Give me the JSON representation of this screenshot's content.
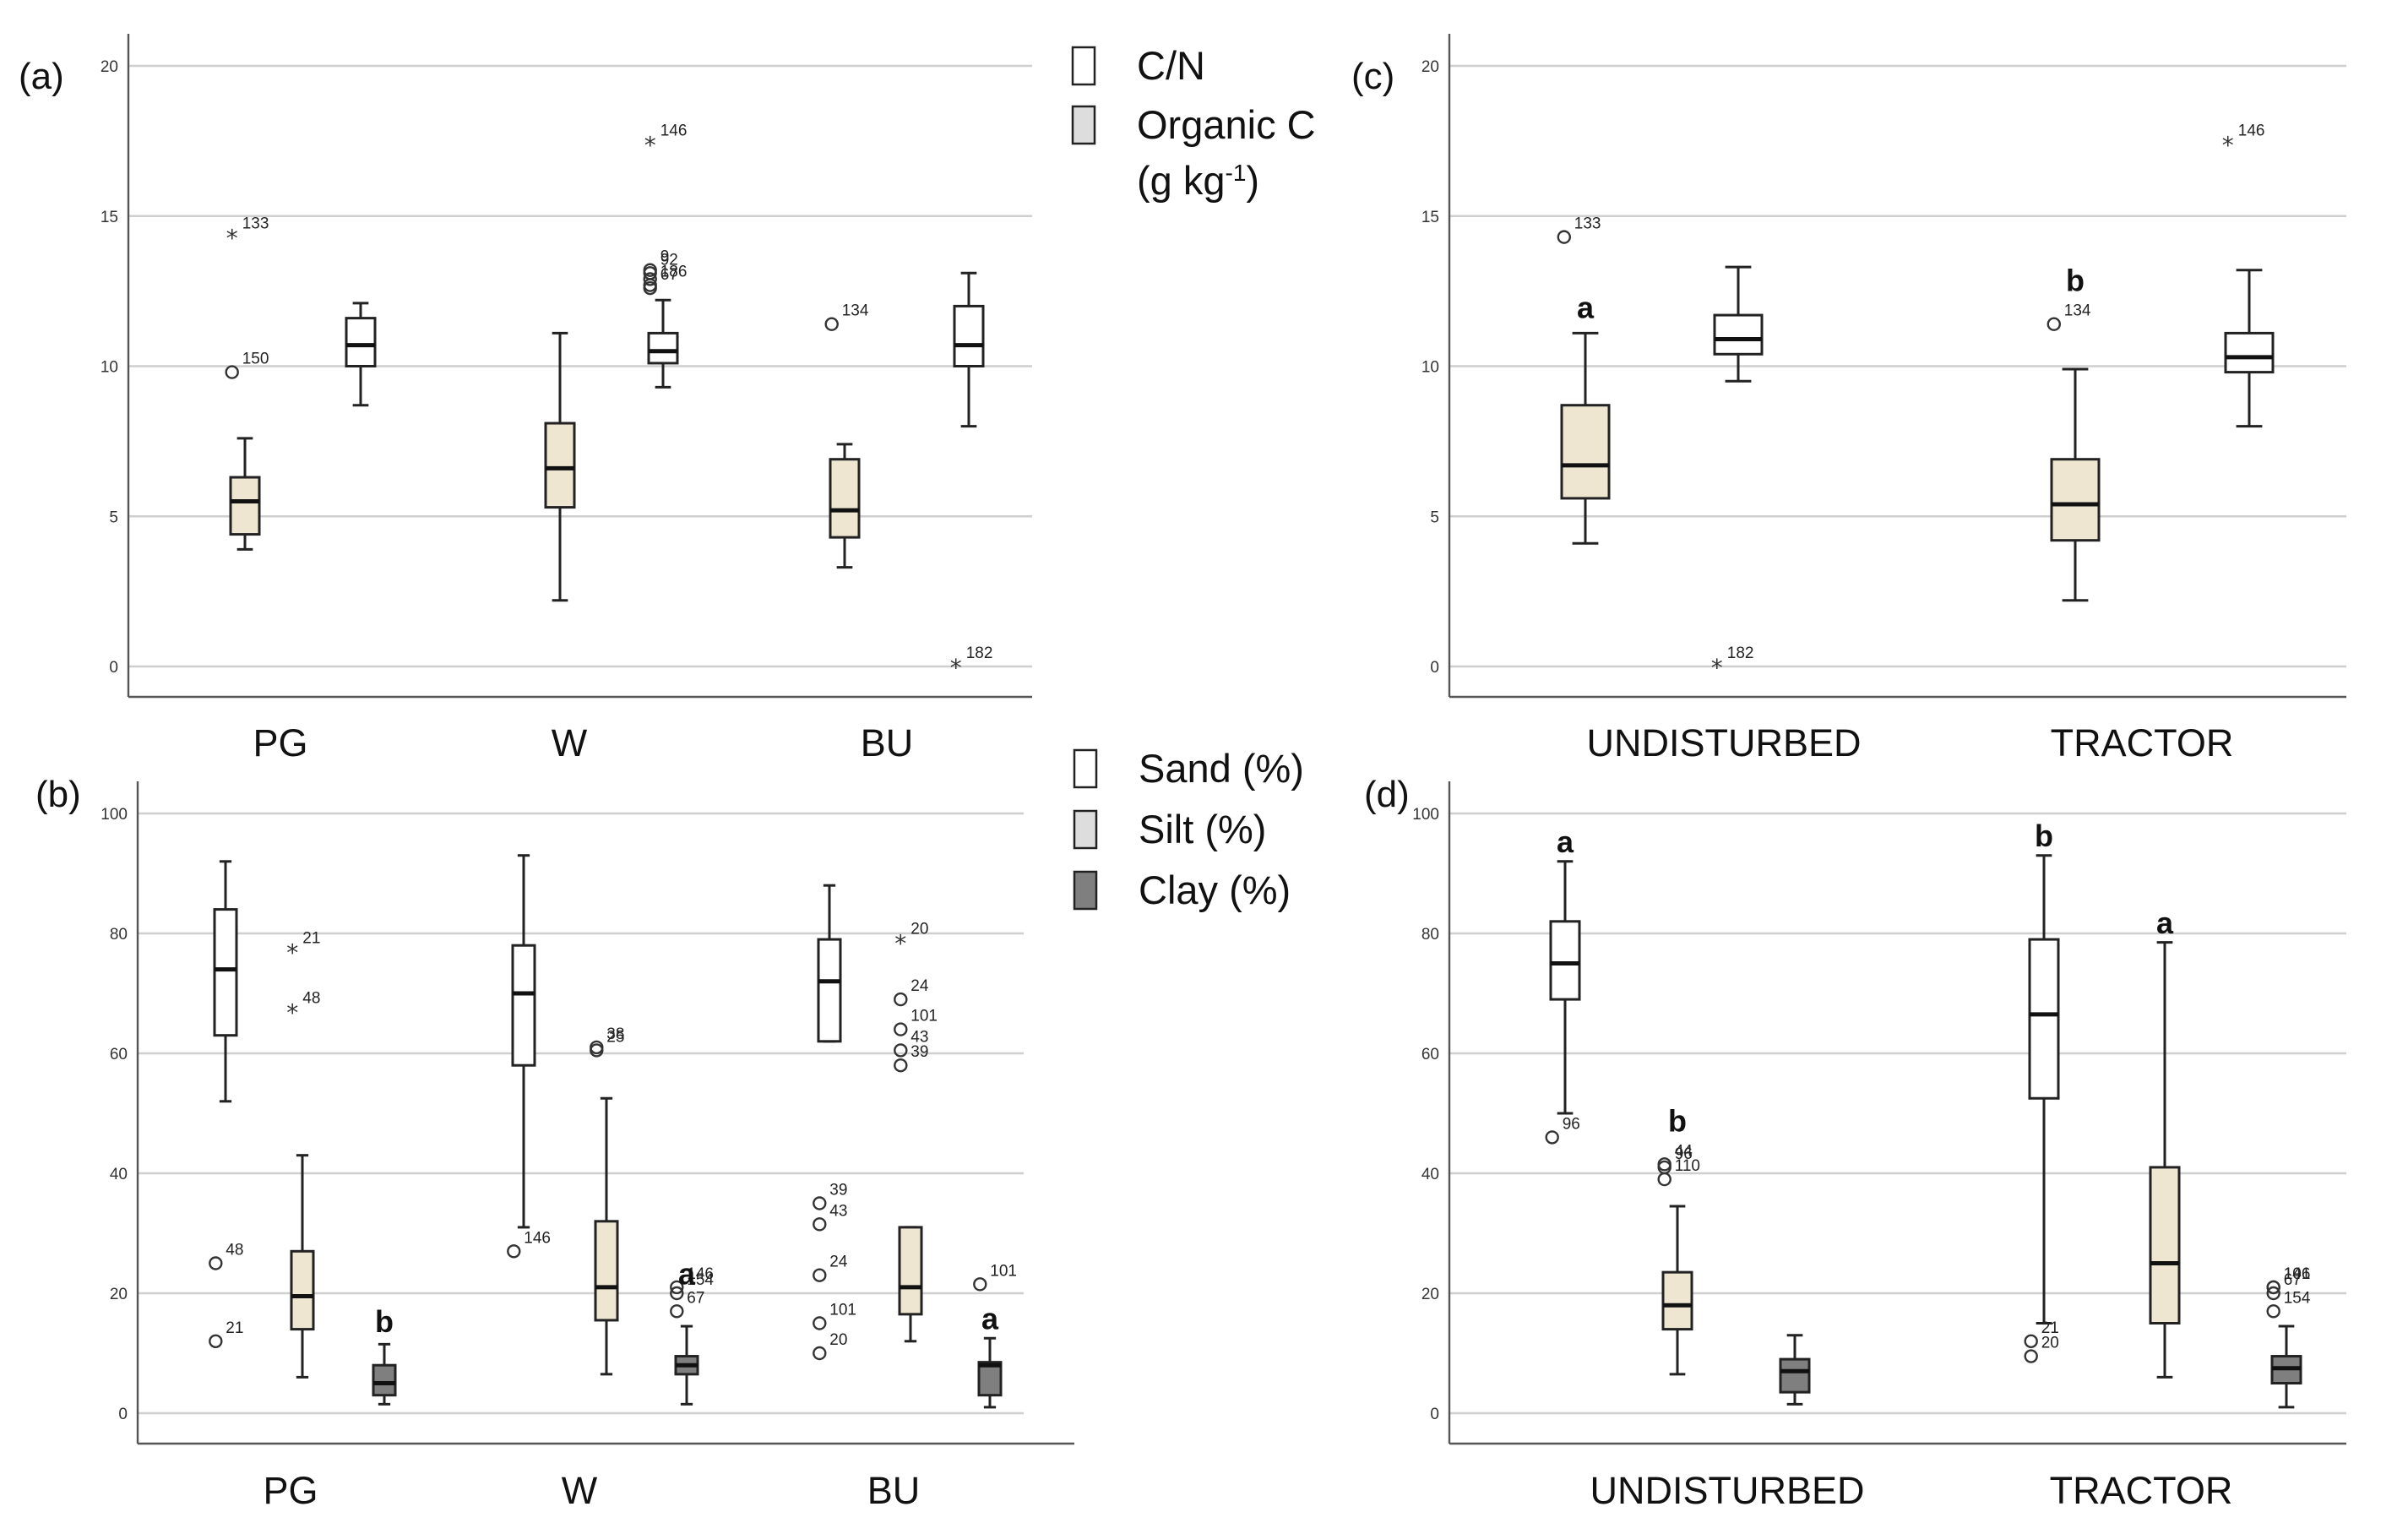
{
  "colors": {
    "white": "#ffffff",
    "beige": "#efe6d2",
    "light_gray": "#dddddd",
    "dark_gray": "#7f7f7f",
    "grid": "#cfcfcf",
    "axis": "#555555"
  },
  "legends": [
    {
      "panel": "a",
      "items": [
        {
          "label": "C/N",
          "color": "#ffffff"
        },
        {
          "label": "Organic C",
          "color": "#dddddd"
        }
      ],
      "extra_line": {
        "main": "(g kg",
        "sup": "-1",
        "tail": ")"
      }
    },
    {
      "panel": "b",
      "items": [
        {
          "label": "Sand (%)",
          "color": "#ffffff"
        },
        {
          "label": "Silt (%)",
          "color": "#dddddd"
        },
        {
          "label": "Clay (%)",
          "color": "#7f7f7f"
        }
      ]
    }
  ],
  "chart_data": [
    {
      "type": "boxplot",
      "panel_label": "(a)",
      "categories": [
        "PG",
        "W",
        "BU"
      ],
      "ylim": [
        0,
        20
      ],
      "yticks": [
        0,
        5,
        10,
        15,
        20
      ],
      "grid": true,
      "series": [
        {
          "name": "Organic C",
          "color": "#efe6d2",
          "boxes": [
            {
              "min": 3.9,
              "q1": 4.4,
              "median": 5.5,
              "q3": 6.3,
              "max": 7.6,
              "outliers": [
                {
                  "value": 14.3,
                  "label": "133",
                  "marker": "star"
                },
                {
                  "value": 9.8,
                  "label": "150",
                  "marker": "circle"
                }
              ]
            },
            {
              "min": 2.2,
              "q1": 5.3,
              "median": 6.6,
              "q3": 8.1,
              "max": 11.1,
              "outliers": []
            },
            {
              "min": 3.3,
              "q1": 4.3,
              "median": 5.2,
              "q3": 6.9,
              "max": 7.4,
              "outliers": [
                {
                  "value": 11.4,
                  "label": "134",
                  "marker": "circle"
                }
              ]
            }
          ]
        },
        {
          "name": "C/N",
          "color": "#ffffff",
          "boxes": [
            {
              "min": 8.7,
              "q1": 10.0,
              "median": 10.7,
              "q3": 11.6,
              "max": 12.1,
              "outliers": []
            },
            {
              "min": 9.3,
              "q1": 10.1,
              "median": 10.5,
              "q3": 11.1,
              "max": 12.2,
              "outliers": [
                {
                  "value": 17.4,
                  "label": "146",
                  "marker": "star"
                },
                {
                  "value": 13.2,
                  "label": "9",
                  "marker": "circle"
                },
                {
                  "value": 13.1,
                  "label": "92",
                  "marker": "circle"
                },
                {
                  "value": 12.9,
                  "label": "",
                  "marker": "circle"
                },
                {
                  "value": 12.7,
                  "label": "186",
                  "marker": "circle"
                },
                {
                  "value": 12.6,
                  "label": "67",
                  "marker": "circle"
                }
              ]
            },
            {
              "min": 8.0,
              "q1": 10.0,
              "median": 10.7,
              "q3": 12.0,
              "max": 13.1,
              "outliers": [
                {
                  "value": 0.0,
                  "label": "182",
                  "marker": "star"
                }
              ]
            }
          ]
        }
      ],
      "annotations": []
    },
    {
      "type": "boxplot",
      "panel_label": "(b)",
      "categories": [
        "PG",
        "W",
        "BU"
      ],
      "ylim": [
        0,
        100
      ],
      "yticks": [
        0,
        20,
        40,
        60,
        80,
        100
      ],
      "grid": true,
      "series": [
        {
          "name": "Sand (%)",
          "color": "#ffffff",
          "boxes": [
            {
              "min": 52,
              "q1": 63,
              "median": 74,
              "q3": 84,
              "max": 92,
              "outliers": [
                {
                  "value": 25,
                  "label": "48",
                  "marker": "circle"
                },
                {
                  "value": 12,
                  "label": "21",
                  "marker": "circle"
                }
              ]
            },
            {
              "min": 31,
              "q1": 58,
              "median": 70,
              "q3": 78,
              "max": 93,
              "outliers": [
                {
                  "value": 27,
                  "label": "146",
                  "marker": "circle"
                }
              ]
            },
            {
              "min": 62,
              "q1": 62,
              "median": 72,
              "q3": 79,
              "max": 88,
              "outliers": [
                {
                  "value": 35,
                  "label": "39",
                  "marker": "circle"
                },
                {
                  "value": 31.5,
                  "label": "43",
                  "marker": "circle"
                },
                {
                  "value": 23,
                  "label": "24",
                  "marker": "circle"
                },
                {
                  "value": 15,
                  "label": "101",
                  "marker": "circle"
                },
                {
                  "value": 10,
                  "label": "20",
                  "marker": "circle"
                }
              ]
            }
          ]
        },
        {
          "name": "Silt (%)",
          "color": "#efe6d2",
          "boxes": [
            {
              "min": 6,
              "q1": 14,
              "median": 19.5,
              "q3": 27,
              "max": 43,
              "outliers": [
                {
                  "value": 77,
                  "label": "21",
                  "marker": "star"
                },
                {
                  "value": 67,
                  "label": "48",
                  "marker": "star"
                }
              ]
            },
            {
              "min": 6.5,
              "q1": 15.5,
              "median": 21,
              "q3": 32,
              "max": 52.5,
              "outliers": [
                {
                  "value": 61,
                  "label": "38",
                  "marker": "circle"
                },
                {
                  "value": 60.5,
                  "label": "25",
                  "marker": "circle"
                }
              ]
            },
            {
              "min": 12,
              "q1": 16.5,
              "median": 21,
              "q3": 31,
              "max": 31,
              "outliers": [
                {
                  "value": 78.5,
                  "label": "20",
                  "marker": "star"
                },
                {
                  "value": 69,
                  "label": "24",
                  "marker": "circle"
                },
                {
                  "value": 64,
                  "label": "101",
                  "marker": "circle"
                },
                {
                  "value": 60.5,
                  "label": "43",
                  "marker": "circle"
                },
                {
                  "value": 58,
                  "label": "39",
                  "marker": "circle"
                }
              ]
            }
          ]
        },
        {
          "name": "Clay (%)",
          "color": "#7f7f7f",
          "boxes": [
            {
              "min": 1.5,
              "q1": 3,
              "median": 5,
              "q3": 8,
              "max": 11.5,
              "outliers": []
            },
            {
              "min": 1.5,
              "q1": 6.5,
              "median": 8,
              "q3": 9.5,
              "max": 14.5,
              "outliers": [
                {
                  "value": 21,
                  "label": "146",
                  "marker": "circle"
                },
                {
                  "value": 20,
                  "label": "154",
                  "marker": "circle"
                },
                {
                  "value": 17,
                  "label": "67",
                  "marker": "circle"
                }
              ]
            },
            {
              "min": 1,
              "q1": 3,
              "median": 8,
              "q3": 8.5,
              "max": 12.5,
              "outliers": [
                {
                  "value": 21.5,
                  "label": "101",
                  "marker": "circle"
                }
              ]
            }
          ]
        }
      ],
      "annotations": [
        {
          "text": "b",
          "category": 0,
          "series": 2,
          "value": 13.5
        },
        {
          "text": "a",
          "category": 1,
          "series": 2,
          "value": 21.5
        },
        {
          "text": "a",
          "category": 2,
          "series": 2,
          "value": 14
        }
      ]
    },
    {
      "type": "boxplot",
      "panel_label": "(c)",
      "categories": [
        "UNDISTURBED",
        "TRACTOR"
      ],
      "ylim": [
        0,
        20
      ],
      "yticks": [
        0,
        5,
        10,
        15,
        20
      ],
      "grid": true,
      "series": [
        {
          "name": "Organic C",
          "color": "#efe6d2",
          "boxes": [
            {
              "min": 4.1,
              "q1": 5.6,
              "median": 6.7,
              "q3": 8.7,
              "max": 11.1,
              "outliers": [
                {
                  "value": 14.3,
                  "label": "133",
                  "marker": "circle"
                }
              ]
            },
            {
              "min": 2.2,
              "q1": 4.2,
              "median": 5.4,
              "q3": 6.9,
              "max": 9.9,
              "outliers": [
                {
                  "value": 11.4,
                  "label": "134",
                  "marker": "circle"
                }
              ]
            }
          ]
        },
        {
          "name": "C/N",
          "color": "#ffffff",
          "boxes": [
            {
              "min": 9.5,
              "q1": 10.4,
              "median": 10.9,
              "q3": 11.7,
              "max": 13.3,
              "outliers": [
                {
                  "value": 0.0,
                  "label": "182",
                  "marker": "star"
                }
              ]
            },
            {
              "min": 8.0,
              "q1": 9.8,
              "median": 10.3,
              "q3": 11.1,
              "max": 13.2,
              "outliers": [
                {
                  "value": 17.4,
                  "label": "146",
                  "marker": "star"
                }
              ]
            }
          ]
        }
      ],
      "annotations": [
        {
          "text": "a",
          "category": 0,
          "series": 0,
          "value": 11.6
        },
        {
          "text": "b",
          "category": 1,
          "series": 0,
          "value": 12.5
        }
      ]
    },
    {
      "type": "boxplot",
      "panel_label": "(d)",
      "categories": [
        "UNDISTURBED",
        "TRACTOR"
      ],
      "ylim": [
        0,
        100
      ],
      "yticks": [
        0,
        20,
        40,
        60,
        80,
        100
      ],
      "grid": true,
      "series": [
        {
          "name": "Sand (%)",
          "color": "#ffffff",
          "boxes": [
            {
              "min": 50,
              "q1": 69,
              "median": 75,
              "q3": 82,
              "max": 92,
              "outliers": [
                {
                  "value": 46,
                  "label": "96",
                  "marker": "circle"
                }
              ]
            },
            {
              "min": 15,
              "q1": 52.5,
              "median": 66.5,
              "q3": 79,
              "max": 93,
              "outliers": [
                {
                  "value": 12,
                  "label": "21",
                  "marker": "circle"
                },
                {
                  "value": 9.5,
                  "label": "20",
                  "marker": "circle"
                }
              ]
            }
          ]
        },
        {
          "name": "Silt (%)",
          "color": "#efe6d2",
          "boxes": [
            {
              "min": 6.5,
              "q1": 14,
              "median": 18,
              "q3": 23.5,
              "max": 34.5,
              "outliers": [
                {
                  "value": 41.5,
                  "label": "44",
                  "marker": "circle"
                },
                {
                  "value": 41,
                  "label": "96",
                  "marker": "circle"
                },
                {
                  "value": 39,
                  "label": "110",
                  "marker": "circle"
                }
              ]
            },
            {
              "min": 6,
              "q1": 15,
              "median": 25,
              "q3": 41,
              "max": 78.5,
              "outliers": []
            }
          ]
        },
        {
          "name": "Clay (%)",
          "color": "#7f7f7f",
          "boxes": [
            {
              "min": 1.5,
              "q1": 3.5,
              "median": 7,
              "q3": 9,
              "max": 13,
              "outliers": []
            },
            {
              "min": 1,
              "q1": 5,
              "median": 7.5,
              "q3": 9.5,
              "max": 14.5,
              "outliers": [
                {
                  "value": 21,
                  "label": "101",
                  "marker": "circle"
                },
                {
                  "value": 21,
                  "label": "146",
                  "marker": "circle"
                },
                {
                  "value": 20,
                  "label": "67",
                  "marker": "circle"
                },
                {
                  "value": 17,
                  "label": "154",
                  "marker": "circle"
                }
              ]
            }
          ]
        }
      ],
      "annotations": [
        {
          "text": "a",
          "category": 0,
          "series": 0,
          "value": 93.5
        },
        {
          "text": "b",
          "category": 0,
          "series": 1,
          "value": 47
        },
        {
          "text": "b",
          "category": 1,
          "series": 0,
          "value": 94.5
        },
        {
          "text": "a",
          "category": 1,
          "series": 1,
          "value": 80
        }
      ]
    }
  ]
}
